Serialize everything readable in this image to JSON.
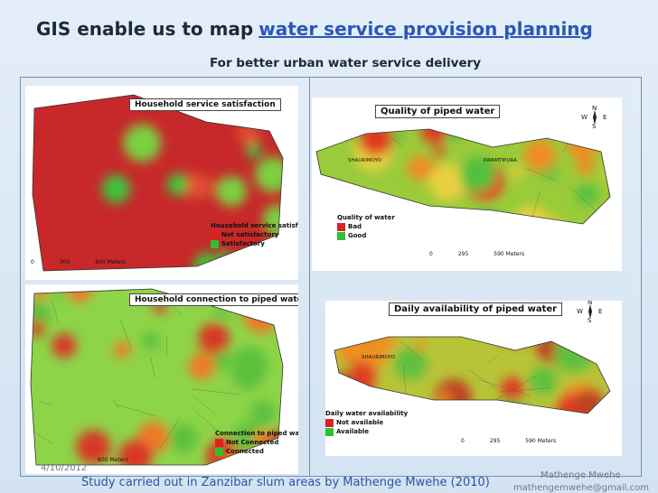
{
  "title": "GIS enable us to map",
  "title_link": "water service provision planning",
  "subtitle": "For better urban water service delivery",
  "maps": [
    {
      "title": "Household service satisfaction",
      "legend_title": "Household service satisfaction",
      "legend_items": [
        "Not satisfactory",
        "Satisfactory"
      ],
      "scale": [
        "0",
        "300",
        "600 Meters"
      ]
    },
    {
      "title": "Quality of piped water",
      "legend_title": "Quality of water",
      "legend_items": [
        "Bad",
        "Good"
      ],
      "scale": [
        "0",
        "295",
        "590 Meters"
      ],
      "places": [
        "SHAURIMOYO",
        "KWAMTIPURA"
      ],
      "compass": [
        "N",
        "W",
        "E",
        "S"
      ]
    },
    {
      "title": "Household connection to piped water",
      "legend_title": "Connection to piped water",
      "legend_items": [
        "Not Connected",
        "Connected"
      ],
      "scale": [
        "600 Meters"
      ]
    },
    {
      "title": "Daily availability of piped water",
      "legend_title": "Daily water availability",
      "legend_items": [
        "Not available",
        "Available"
      ],
      "scale": [
        "0",
        "295",
        "590 Meters"
      ],
      "places": [
        "SHAURIMOYO"
      ],
      "compass": [
        "N",
        "W",
        "E",
        "S"
      ]
    }
  ],
  "footer": {
    "date": "4/10/2012",
    "study": "Study carried out in Zanzibar slum areas by Mathenge Mwehe (2010)",
    "author": "Mathenge Mwehe",
    "email": "mathengemwehe@gmail.com"
  }
}
